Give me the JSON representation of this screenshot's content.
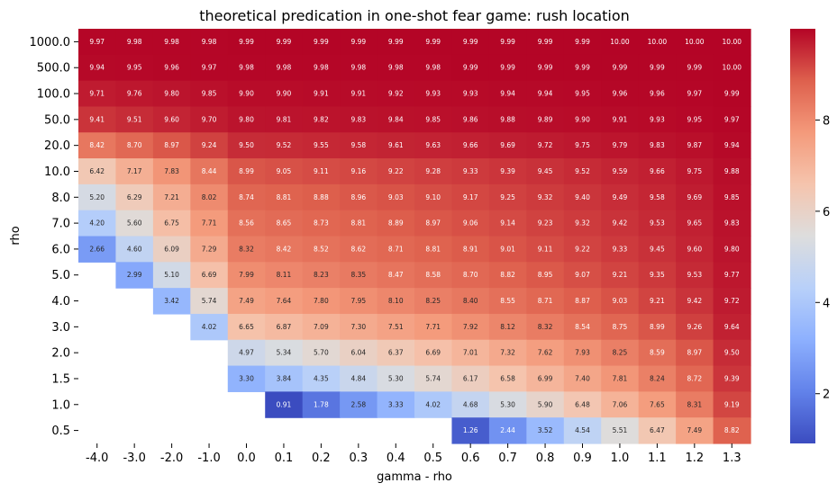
{
  "chart_data": {
    "type": "heatmap",
    "title": "theoretical predication in one-shot fear game: rush location",
    "xlabel": "gamma - rho",
    "ylabel": "rho",
    "x_labels": [
      "-4.0",
      "-3.0",
      "-2.0",
      "-1.0",
      "0.0",
      "0.1",
      "0.2",
      "0.3",
      "0.4",
      "0.5",
      "0.6",
      "0.7",
      "0.8",
      "0.9",
      "1.0",
      "1.1",
      "1.2",
      "1.3"
    ],
    "y_labels": [
      "1000.0",
      "500.0",
      "100.0",
      "50.0",
      "20.0",
      "10.0",
      "8.0",
      "7.0",
      "6.0",
      "5.0",
      "4.0",
      "3.0",
      "2.0",
      "1.5",
      "1.0",
      "0.5"
    ],
    "values": [
      [
        9.97,
        9.98,
        9.98,
        9.98,
        9.99,
        9.99,
        9.99,
        9.99,
        9.99,
        9.99,
        9.99,
        9.99,
        9.99,
        9.99,
        10.0,
        10.0,
        10.0,
        10.0
      ],
      [
        9.94,
        9.95,
        9.96,
        9.97,
        9.98,
        9.98,
        9.98,
        9.98,
        9.98,
        9.98,
        9.99,
        9.99,
        9.99,
        9.99,
        9.99,
        9.99,
        9.99,
        10.0
      ],
      [
        9.71,
        9.76,
        9.8,
        9.85,
        9.9,
        9.9,
        9.91,
        9.91,
        9.92,
        9.93,
        9.93,
        9.94,
        9.94,
        9.95,
        9.96,
        9.96,
        9.97,
        9.99
      ],
      [
        9.41,
        9.51,
        9.6,
        9.7,
        9.8,
        9.81,
        9.82,
        9.83,
        9.84,
        9.85,
        9.86,
        9.88,
        9.89,
        9.9,
        9.91,
        9.93,
        9.95,
        9.97
      ],
      [
        8.42,
        8.7,
        8.97,
        9.24,
        9.5,
        9.52,
        9.55,
        9.58,
        9.61,
        9.63,
        9.66,
        9.69,
        9.72,
        9.75,
        9.79,
        9.83,
        9.87,
        9.94
      ],
      [
        6.42,
        7.17,
        7.83,
        8.44,
        8.99,
        9.05,
        9.11,
        9.16,
        9.22,
        9.28,
        9.33,
        9.39,
        9.45,
        9.52,
        9.59,
        9.66,
        9.75,
        9.88
      ],
      [
        5.2,
        6.29,
        7.21,
        8.02,
        8.74,
        8.81,
        8.88,
        8.96,
        9.03,
        9.1,
        9.17,
        9.25,
        9.32,
        9.4,
        9.49,
        9.58,
        9.69,
        9.85
      ],
      [
        4.2,
        5.6,
        6.75,
        7.71,
        8.56,
        8.65,
        8.73,
        8.81,
        8.89,
        8.97,
        9.06,
        9.14,
        9.23,
        9.32,
        9.42,
        9.53,
        9.65,
        9.83
      ],
      [
        2.66,
        4.6,
        6.09,
        7.29,
        8.32,
        8.42,
        8.52,
        8.62,
        8.71,
        8.81,
        8.91,
        9.01,
        9.11,
        9.22,
        9.33,
        9.45,
        9.6,
        9.8
      ],
      [
        null,
        2.99,
        5.1,
        6.69,
        7.99,
        8.11,
        8.23,
        8.35,
        8.47,
        8.58,
        8.7,
        8.82,
        8.95,
        9.07,
        9.21,
        9.35,
        9.53,
        9.77
      ],
      [
        null,
        null,
        3.42,
        5.74,
        7.49,
        7.64,
        7.8,
        7.95,
        8.1,
        8.25,
        8.4,
        8.55,
        8.71,
        8.87,
        9.03,
        9.21,
        9.42,
        9.72
      ],
      [
        null,
        null,
        null,
        4.02,
        6.65,
        6.87,
        7.09,
        7.3,
        7.51,
        7.71,
        7.92,
        8.12,
        8.32,
        8.54,
        8.75,
        8.99,
        9.26,
        9.64
      ],
      [
        null,
        null,
        null,
        null,
        4.97,
        5.34,
        5.7,
        6.04,
        6.37,
        6.69,
        7.01,
        7.32,
        7.62,
        7.93,
        8.25,
        8.59,
        8.97,
        9.5
      ],
      [
        null,
        null,
        null,
        null,
        3.3,
        3.84,
        4.35,
        4.84,
        5.3,
        5.74,
        6.17,
        6.58,
        6.99,
        7.4,
        7.81,
        8.24,
        8.72,
        9.39
      ],
      [
        null,
        null,
        null,
        null,
        null,
        0.91,
        1.78,
        2.58,
        3.33,
        4.02,
        4.68,
        5.3,
        5.9,
        6.48,
        7.06,
        7.65,
        8.31,
        9.19
      ],
      [
        null,
        null,
        null,
        null,
        null,
        null,
        null,
        null,
        null,
        null,
        1.26,
        2.44,
        3.52,
        4.54,
        5.51,
        6.47,
        7.49,
        8.82
      ]
    ],
    "value_format": "2 decimals",
    "vmin": 0.91,
    "vmax": 10.0,
    "colormap": "coolwarm",
    "colorbar_ticks": [
      "2",
      "4",
      "6",
      "8"
    ],
    "colorbar_tick_values": [
      2,
      4,
      6,
      8
    ],
    "grid": false
  }
}
